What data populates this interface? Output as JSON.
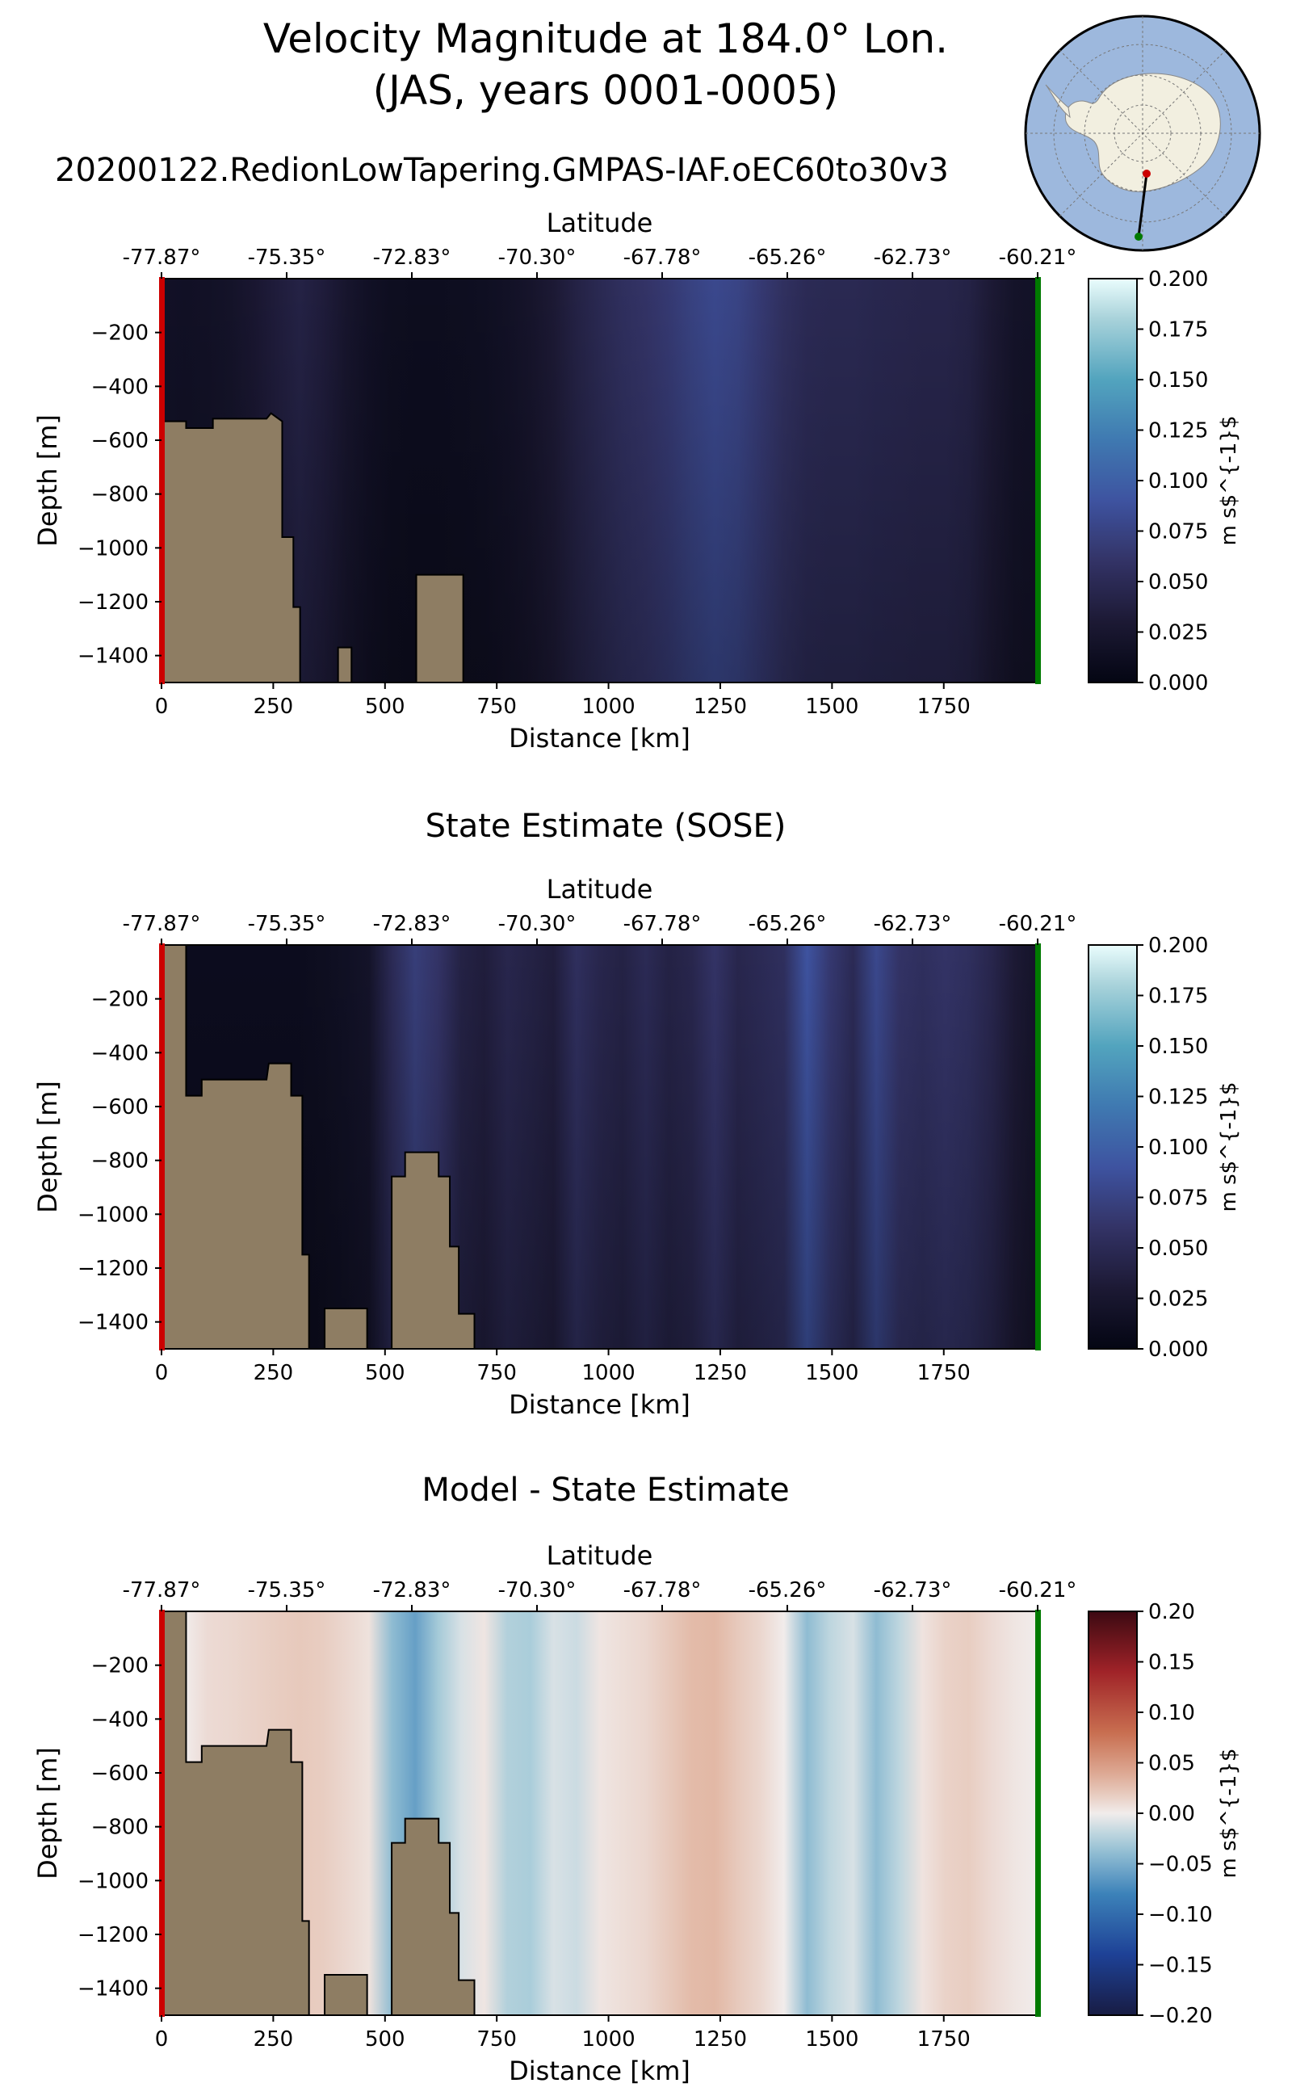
{
  "figure": {
    "title_line1": "Velocity Magnitude at 184.0° Lon.",
    "title_line2": "(JAS, years 0001-0005)",
    "run_name": "20200122.RedionLowTapering.GMPAS-IAF.oEC60to30v3"
  },
  "colors": {
    "land": "#8e7d63",
    "start_marker": "#cc0000",
    "end_marker": "#007a00",
    "ocean_map": "#9db8dd",
    "antarctica": "#f2efe0"
  },
  "chart_data": [
    {
      "type": "heatmap",
      "title": "",
      "xlabel": "Distance [km]",
      "ylabel": "Depth [m]",
      "top_xlabel": "Latitude",
      "xlim": [
        0,
        1960
      ],
      "ylim": [
        -1500,
        0
      ],
      "xticks": [
        0,
        250,
        500,
        750,
        1000,
        1250,
        1500,
        1750
      ],
      "yticks": [
        -200,
        -400,
        -600,
        -800,
        -1000,
        -1200,
        -1400
      ],
      "lat_ticks": [
        "-77.87°",
        "-75.35°",
        "-72.83°",
        "-70.30°",
        "-67.78°",
        "-65.26°",
        "-62.73°",
        "-60.21°"
      ],
      "colorbar": {
        "label": "m s$^{-1}$",
        "min": 0.0,
        "max": 0.2,
        "ticks": [
          "0.000",
          "0.025",
          "0.050",
          "0.075",
          "0.100",
          "0.125",
          "0.150",
          "0.175",
          "0.200"
        ],
        "cmap": "ice"
      },
      "bathymetry": [
        [
          0,
          -530
        ],
        [
          55,
          -530
        ],
        [
          55,
          -555
        ],
        [
          115,
          -555
        ],
        [
          115,
          -520
        ],
        [
          235,
          -520
        ],
        [
          245,
          -500
        ],
        [
          270,
          -530
        ],
        [
          270,
          -960
        ],
        [
          295,
          -960
        ],
        [
          295,
          -1220
        ],
        [
          310,
          -1220
        ],
        [
          310,
          -1500
        ],
        [
          395,
          -1500
        ],
        [
          395,
          -1370
        ],
        [
          425,
          -1370
        ],
        [
          425,
          -1500
        ],
        [
          570,
          -1500
        ],
        [
          570,
          -1100
        ],
        [
          675,
          -1100
        ],
        [
          675,
          -1500
        ]
      ],
      "field_profile": [
        0.018,
        0.016,
        0.017,
        0.02,
        0.026,
        0.034,
        0.04,
        0.034,
        0.024,
        0.016,
        0.012,
        0.011,
        0.011,
        0.012,
        0.014,
        0.017,
        0.022,
        0.03,
        0.04,
        0.048,
        0.055,
        0.06,
        0.066,
        0.074,
        0.08,
        0.076,
        0.066,
        0.056,
        0.05,
        0.048,
        0.048,
        0.046,
        0.045,
        0.044,
        0.044,
        0.04,
        0.03,
        0.02,
        0.018
      ]
    },
    {
      "type": "heatmap",
      "title": "State Estimate (SOSE)",
      "xlabel": "Distance [km]",
      "ylabel": "Depth [m]",
      "top_xlabel": "Latitude",
      "xlim": [
        0,
        1960
      ],
      "ylim": [
        -1500,
        0
      ],
      "xticks": [
        0,
        250,
        500,
        750,
        1000,
        1250,
        1500,
        1750
      ],
      "yticks": [
        -200,
        -400,
        -600,
        -800,
        -1000,
        -1200,
        -1400
      ],
      "lat_ticks": [
        "-77.87°",
        "-75.35°",
        "-72.83°",
        "-70.30°",
        "-67.78°",
        "-65.26°",
        "-62.73°",
        "-60.21°"
      ],
      "colorbar": {
        "label": "m s$^{-1}$",
        "min": 0.0,
        "max": 0.2,
        "ticks": [
          "0.000",
          "0.025",
          "0.050",
          "0.075",
          "0.100",
          "0.125",
          "0.150",
          "0.175",
          "0.200"
        ],
        "cmap": "ice"
      },
      "bathymetry": [
        [
          0,
          -1500
        ],
        [
          0,
          0
        ],
        [
          55,
          0
        ],
        [
          55,
          -560
        ],
        [
          90,
          -560
        ],
        [
          90,
          -500
        ],
        [
          235,
          -500
        ],
        [
          240,
          -440
        ],
        [
          290,
          -440
        ],
        [
          290,
          -560
        ],
        [
          315,
          -560
        ],
        [
          315,
          -1150
        ],
        [
          330,
          -1150
        ],
        [
          330,
          -1500
        ],
        [
          365,
          -1500
        ],
        [
          365,
          -1350
        ],
        [
          460,
          -1350
        ],
        [
          460,
          -1500
        ],
        [
          515,
          -1500
        ],
        [
          515,
          -860
        ],
        [
          545,
          -860
        ],
        [
          545,
          -770
        ],
        [
          620,
          -770
        ],
        [
          620,
          -860
        ],
        [
          645,
          -860
        ],
        [
          645,
          -1120
        ],
        [
          665,
          -1120
        ],
        [
          665,
          -1370
        ],
        [
          700,
          -1370
        ],
        [
          700,
          -1500
        ]
      ],
      "field_profile": [
        0.01,
        0.01,
        0.01,
        0.01,
        0.01,
        0.01,
        0.01,
        0.012,
        0.015,
        0.02,
        0.05,
        0.07,
        0.06,
        0.04,
        0.035,
        0.045,
        0.04,
        0.035,
        0.055,
        0.045,
        0.04,
        0.05,
        0.04,
        0.045,
        0.06,
        0.045,
        0.05,
        0.055,
        0.09,
        0.065,
        0.05,
        0.08,
        0.06,
        0.055,
        0.06,
        0.055,
        0.045,
        0.03,
        0.02
      ]
    },
    {
      "type": "heatmap",
      "title": "Model - State Estimate",
      "xlabel": "Distance [km]",
      "ylabel": "Depth [m]",
      "top_xlabel": "Latitude",
      "xlim": [
        0,
        1960
      ],
      "ylim": [
        -1500,
        0
      ],
      "xticks": [
        0,
        250,
        500,
        750,
        1000,
        1250,
        1500,
        1750
      ],
      "yticks": [
        -200,
        -400,
        -600,
        -800,
        -1000,
        -1200,
        -1400
      ],
      "lat_ticks": [
        "-77.87°",
        "-75.35°",
        "-72.83°",
        "-70.30°",
        "-67.78°",
        "-65.26°",
        "-62.73°",
        "-60.21°"
      ],
      "colorbar": {
        "label": "m s$^{-1}$",
        "min": -0.2,
        "max": 0.2,
        "ticks": [
          "−0.20",
          "−0.15",
          "−0.10",
          "−0.05",
          "0.00",
          "0.05",
          "0.10",
          "0.15",
          "0.20"
        ],
        "cmap": "balance"
      },
      "bathymetry": [
        [
          0,
          -1500
        ],
        [
          0,
          0
        ],
        [
          55,
          0
        ],
        [
          55,
          -560
        ],
        [
          90,
          -560
        ],
        [
          90,
          -500
        ],
        [
          235,
          -500
        ],
        [
          240,
          -440
        ],
        [
          290,
          -440
        ],
        [
          290,
          -560
        ],
        [
          315,
          -560
        ],
        [
          315,
          -1150
        ],
        [
          330,
          -1150
        ],
        [
          330,
          -1500
        ],
        [
          365,
          -1500
        ],
        [
          365,
          -1350
        ],
        [
          460,
          -1350
        ],
        [
          460,
          -1500
        ],
        [
          515,
          -1500
        ],
        [
          515,
          -860
        ],
        [
          545,
          -860
        ],
        [
          545,
          -770
        ],
        [
          620,
          -770
        ],
        [
          620,
          -860
        ],
        [
          645,
          -860
        ],
        [
          645,
          -1120
        ],
        [
          665,
          -1120
        ],
        [
          665,
          -1370
        ],
        [
          700,
          -1370
        ],
        [
          700,
          -1500
        ]
      ],
      "field_profile": [
        0.0,
        0.0,
        0.01,
        0.012,
        0.015,
        0.018,
        0.02,
        0.018,
        0.012,
        0.006,
        -0.04,
        -0.06,
        -0.03,
        -0.01,
        0.004,
        -0.025,
        -0.028,
        -0.01,
        -0.015,
        0.004,
        0.008,
        0.012,
        0.02,
        0.028,
        0.03,
        0.02,
        0.012,
        0.0,
        -0.04,
        -0.02,
        -0.01,
        -0.04,
        -0.02,
        0.005,
        0.015,
        0.018,
        0.01,
        0.004,
        0.0
      ]
    }
  ],
  "inset_map": {
    "type": "south-polar-stereographic",
    "section_start": "red",
    "section_end": "green"
  }
}
